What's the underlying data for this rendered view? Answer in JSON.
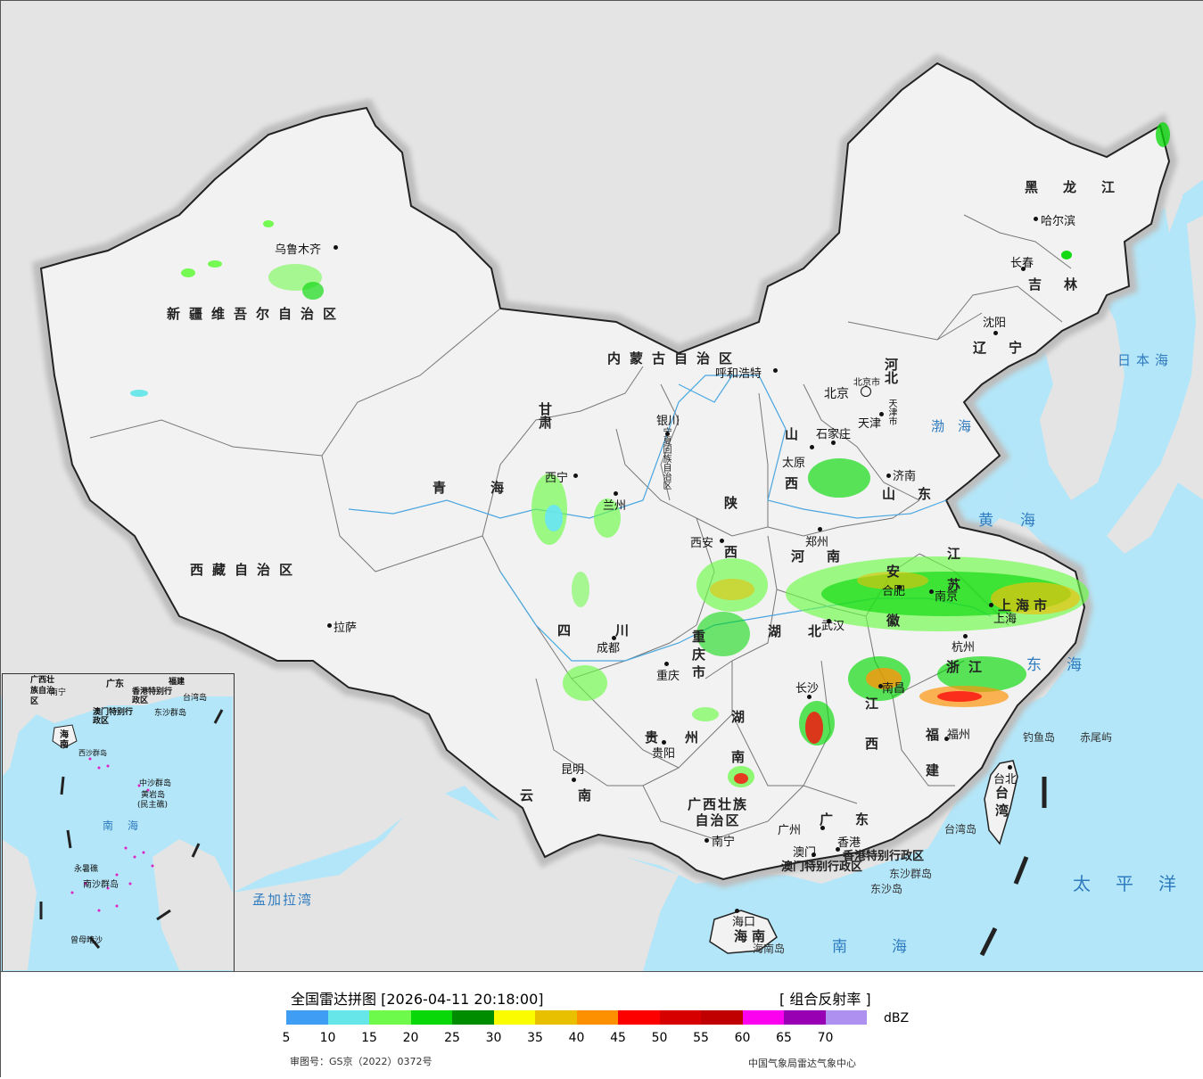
{
  "map": {
    "colors": {
      "sea": "#b3e6f8",
      "land_foreign": "#e4e4e4",
      "land_china": "#f2f2f2",
      "border": "#222222",
      "halo": "#bdbdbd"
    },
    "provinces": [
      {
        "name": "新疆维吾尔自治区"
      },
      {
        "name": "西藏自治区"
      },
      {
        "name": "青海"
      },
      {
        "name": "甘肃"
      },
      {
        "name": "内蒙古自治区"
      },
      {
        "name": "黑龙江"
      },
      {
        "name": "吉林"
      },
      {
        "name": "辽宁"
      },
      {
        "name": "河北"
      },
      {
        "name": "山西"
      },
      {
        "name": "山东"
      },
      {
        "name": "河南"
      },
      {
        "name": "陕西"
      },
      {
        "name": "四川"
      },
      {
        "name": "重庆市"
      },
      {
        "name": "湖北"
      },
      {
        "name": "安徽"
      },
      {
        "name": "江苏"
      },
      {
        "name": "上海市"
      },
      {
        "name": "浙江"
      },
      {
        "name": "江西"
      },
      {
        "name": "湖南"
      },
      {
        "name": "贵州"
      },
      {
        "name": "云南"
      },
      {
        "name": "广西壮族自治区"
      },
      {
        "name": "广东"
      },
      {
        "name": "福建"
      },
      {
        "name": "台湾"
      },
      {
        "name": "海南"
      },
      {
        "name": "宁夏回族自治区"
      }
    ],
    "cities": [
      {
        "name": "乌鲁木齐"
      },
      {
        "name": "拉萨"
      },
      {
        "name": "西宁"
      },
      {
        "name": "兰州"
      },
      {
        "name": "银川"
      },
      {
        "name": "呼和浩特"
      },
      {
        "name": "哈尔滨"
      },
      {
        "name": "长春"
      },
      {
        "name": "沈阳"
      },
      {
        "name": "北京"
      },
      {
        "name": "北京市"
      },
      {
        "name": "天津"
      },
      {
        "name": "石家庄"
      },
      {
        "name": "太原"
      },
      {
        "name": "济南"
      },
      {
        "name": "郑州"
      },
      {
        "name": "西安"
      },
      {
        "name": "成都"
      },
      {
        "name": "重庆"
      },
      {
        "name": "武汉"
      },
      {
        "name": "合肥"
      },
      {
        "name": "南京"
      },
      {
        "name": "上海"
      },
      {
        "name": "杭州"
      },
      {
        "name": "南昌"
      },
      {
        "name": "长沙"
      },
      {
        "name": "贵阳"
      },
      {
        "name": "昆明"
      },
      {
        "name": "南宁"
      },
      {
        "name": "广州"
      },
      {
        "name": "福州"
      },
      {
        "name": "台北"
      },
      {
        "name": "香港"
      },
      {
        "name": "澳门"
      },
      {
        "name": "海口"
      },
      {
        "name": "天津市"
      }
    ],
    "seas": [
      {
        "name": "日本海"
      },
      {
        "name": "渤海"
      },
      {
        "name": "黄海"
      },
      {
        "name": "东海"
      },
      {
        "name": "南海"
      },
      {
        "name": "太平洋"
      },
      {
        "name": "孟加拉湾"
      }
    ],
    "islands": [
      {
        "name": "钓鱼岛"
      },
      {
        "name": "赤尾屿"
      },
      {
        "name": "台湾岛"
      },
      {
        "name": "东沙群岛"
      },
      {
        "name": "东沙岛"
      },
      {
        "name": "海南岛"
      },
      {
        "name": "香港特别行政区"
      },
      {
        "name": "澳门特别行政区"
      }
    ],
    "inset_labels": [
      {
        "name": "广西壮族自治区"
      },
      {
        "name": "广东"
      },
      {
        "name": "福建"
      },
      {
        "name": "台湾岛"
      },
      {
        "name": "南宁"
      },
      {
        "name": "香港特别行政区"
      },
      {
        "name": "澳门特别行政区"
      },
      {
        "name": "东沙群岛"
      },
      {
        "name": "海南"
      },
      {
        "name": "西沙群岛"
      },
      {
        "name": "中沙群岛"
      },
      {
        "name": "黄岩岛"
      },
      {
        "name": "(民主礁)"
      },
      {
        "name": "南海"
      },
      {
        "name": "永暑礁"
      },
      {
        "name": "南沙群岛"
      },
      {
        "name": "曾母暗沙"
      }
    ]
  },
  "legend": {
    "title": "全国雷达拼图 [2026-04-11 20:18:00]",
    "product": "[ 组合反射率 ]",
    "unit": "dBZ",
    "scale": [
      {
        "color": "#3f9ef4",
        "label": "5"
      },
      {
        "color": "#66e6e8",
        "label": "10"
      },
      {
        "color": "#6efa4a",
        "label": "15"
      },
      {
        "color": "#08d808",
        "label": "20"
      },
      {
        "color": "#008c00",
        "label": "25"
      },
      {
        "color": "#fcfc00",
        "label": "30"
      },
      {
        "color": "#e8c000",
        "label": "35"
      },
      {
        "color": "#fc9000",
        "label": "40"
      },
      {
        "color": "#fc0000",
        "label": "45"
      },
      {
        "color": "#d60000",
        "label": "50"
      },
      {
        "color": "#c00000",
        "label": "55"
      },
      {
        "color": "#fc00f0",
        "label": "60"
      },
      {
        "color": "#9800b4",
        "label": "65"
      },
      {
        "color": "#ad90f0",
        "label": "70"
      }
    ],
    "approval": "审图号：GS京（2022）0372号",
    "credit": "中国气象局雷达气象中心"
  }
}
